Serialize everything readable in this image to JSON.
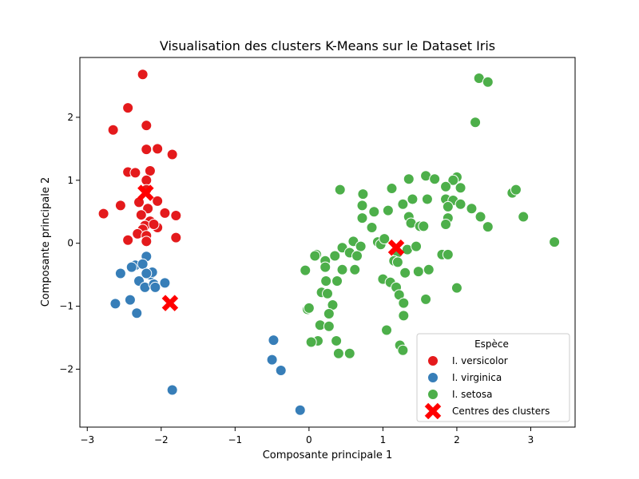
{
  "chart_data": {
    "type": "scatter",
    "title": "Visualisation des clusters K-Means sur le Dataset Iris",
    "xlabel": "Composante principale 1",
    "ylabel": "Composante principale 2",
    "xlim": [
      -3.1,
      3.6
    ],
    "ylim": [
      -2.92,
      2.95
    ],
    "xticks": [
      -3,
      -2,
      -1,
      0,
      1,
      2,
      3
    ],
    "yticks": [
      -2,
      -1,
      0,
      1,
      2
    ],
    "grid": false,
    "legend": {
      "title": "Espèce",
      "position": "lower-right"
    },
    "series": [
      {
        "name": "I. versicolor",
        "color": "#e41a1c",
        "points": [
          [
            -2.25,
            2.68
          ],
          [
            -2.45,
            2.15
          ],
          [
            -2.65,
            1.8
          ],
          [
            -2.2,
            1.87
          ],
          [
            -2.2,
            1.49
          ],
          [
            -2.05,
            1.5
          ],
          [
            -1.85,
            1.41
          ],
          [
            -2.45,
            1.13
          ],
          [
            -2.35,
            1.12
          ],
          [
            -2.15,
            1.15
          ],
          [
            -2.2,
            1.0
          ],
          [
            -2.55,
            0.6
          ],
          [
            -2.3,
            0.65
          ],
          [
            -2.2,
            0.85
          ],
          [
            -2.05,
            0.67
          ],
          [
            -2.18,
            0.55
          ],
          [
            -2.78,
            0.47
          ],
          [
            -2.27,
            0.45
          ],
          [
            -1.95,
            0.48
          ],
          [
            -1.8,
            0.44
          ],
          [
            -2.15,
            0.35
          ],
          [
            -2.22,
            0.28
          ],
          [
            -2.25,
            0.22
          ],
          [
            -2.05,
            0.25
          ],
          [
            -2.32,
            0.15
          ],
          [
            -2.2,
            0.12
          ],
          [
            -2.45,
            0.05
          ],
          [
            -2.2,
            0.03
          ],
          [
            -1.8,
            0.09
          ],
          [
            -2.1,
            0.3
          ]
        ]
      },
      {
        "name": "I. virginica",
        "color": "#377eb8",
        "points": [
          [
            -2.2,
            -0.21
          ],
          [
            -2.35,
            -0.35
          ],
          [
            -2.25,
            -0.33
          ],
          [
            -2.4,
            -0.38
          ],
          [
            -2.55,
            -0.48
          ],
          [
            -2.15,
            -0.5
          ],
          [
            -2.12,
            -0.46
          ],
          [
            -2.2,
            -0.48
          ],
          [
            -2.3,
            -0.6
          ],
          [
            -2.22,
            -0.7
          ],
          [
            -2.1,
            -0.65
          ],
          [
            -2.08,
            -0.7
          ],
          [
            -1.95,
            -0.63
          ],
          [
            -2.62,
            -0.96
          ],
          [
            -2.42,
            -0.9
          ],
          [
            -2.33,
            -1.11
          ],
          [
            -1.85,
            -2.33
          ],
          [
            -0.48,
            -1.54
          ],
          [
            -0.5,
            -1.85
          ],
          [
            -0.38,
            -2.02
          ],
          [
            -0.12,
            -2.65
          ]
        ]
      },
      {
        "name": "I. setosa",
        "color": "#4daf4a",
        "points": [
          [
            2.3,
            2.62
          ],
          [
            2.42,
            2.56
          ],
          [
            2.25,
            1.92
          ],
          [
            1.58,
            1.07
          ],
          [
            1.7,
            1.02
          ],
          [
            1.35,
            1.02
          ],
          [
            2,
            1.05
          ],
          [
            1.95,
            1.0
          ],
          [
            2.05,
            0.88
          ],
          [
            1.85,
            0.9
          ],
          [
            1.12,
            0.87
          ],
          [
            1.4,
            0.7
          ],
          [
            1.6,
            0.7
          ],
          [
            1.85,
            0.7
          ],
          [
            1.95,
            0.68
          ],
          [
            2.05,
            0.62
          ],
          [
            2.2,
            0.55
          ],
          [
            1.88,
            0.58
          ],
          [
            1.88,
            0.4
          ],
          [
            1.85,
            0.3
          ],
          [
            2.32,
            0.42
          ],
          [
            2.42,
            0.26
          ],
          [
            2.75,
            0.8
          ],
          [
            2.8,
            0.85
          ],
          [
            2.9,
            0.42
          ],
          [
            3.32,
            0.02
          ],
          [
            0.42,
            0.85
          ],
          [
            0.73,
            0.78
          ],
          [
            0.72,
            0.6
          ],
          [
            0.72,
            0.4
          ],
          [
            0.88,
            0.5
          ],
          [
            1.07,
            0.52
          ],
          [
            1.27,
            0.62
          ],
          [
            1.35,
            0.42
          ],
          [
            1.38,
            0.32
          ],
          [
            1.5,
            0.27
          ],
          [
            1.55,
            0.27
          ],
          [
            0.85,
            0.25
          ],
          [
            0.6,
            0.03
          ],
          [
            0.93,
            0.02
          ],
          [
            0.97,
            -0.02
          ],
          [
            1.02,
            0.07
          ],
          [
            0.45,
            -0.07
          ],
          [
            0.7,
            -0.05
          ],
          [
            0.55,
            -0.15
          ],
          [
            0.65,
            -0.2
          ],
          [
            0.1,
            -0.18
          ],
          [
            0.08,
            -0.2
          ],
          [
            0.35,
            -0.2
          ],
          [
            1.2,
            -0.15
          ],
          [
            1.33,
            -0.1
          ],
          [
            1.45,
            -0.05
          ],
          [
            1.15,
            -0.28
          ],
          [
            1.2,
            -0.3
          ],
          [
            0.22,
            -0.28
          ],
          [
            0.22,
            -0.38
          ],
          [
            0.45,
            -0.42
          ],
          [
            0.62,
            -0.42
          ],
          [
            -0.05,
            -0.43
          ],
          [
            1.0,
            -0.57
          ],
          [
            0.38,
            -0.6
          ],
          [
            0.23,
            -0.6
          ],
          [
            1.1,
            -0.62
          ],
          [
            1.18,
            -0.7
          ],
          [
            1.3,
            -0.47
          ],
          [
            1.48,
            -0.45
          ],
          [
            1.62,
            -0.42
          ],
          [
            1.8,
            -0.18
          ],
          [
            1.88,
            -0.18
          ],
          [
            2.0,
            -0.71
          ],
          [
            0.17,
            -0.78
          ],
          [
            0.25,
            -0.8
          ],
          [
            1.22,
            -0.82
          ],
          [
            1.28,
            -0.95
          ],
          [
            1.58,
            -0.89
          ],
          [
            0.32,
            -0.98
          ],
          [
            -0.02,
            -1.05
          ],
          [
            0.0,
            -1.03
          ],
          [
            0.27,
            -1.12
          ],
          [
            1.28,
            -1.15
          ],
          [
            0.15,
            -1.3
          ],
          [
            0.27,
            -1.32
          ],
          [
            1.05,
            -1.38
          ],
          [
            0.12,
            -1.55
          ],
          [
            0.03,
            -1.57
          ],
          [
            0.37,
            -1.55
          ],
          [
            1.23,
            -1.62
          ],
          [
            1.27,
            -1.7
          ],
          [
            0.4,
            -1.75
          ],
          [
            0.55,
            -1.75
          ]
        ]
      }
    ],
    "centroids": {
      "name": "Centres des clusters",
      "color": "#ff0000",
      "points": [
        [
          -2.21,
          0.8
        ],
        [
          -1.88,
          -0.95
        ],
        [
          1.18,
          -0.07
        ]
      ]
    }
  }
}
